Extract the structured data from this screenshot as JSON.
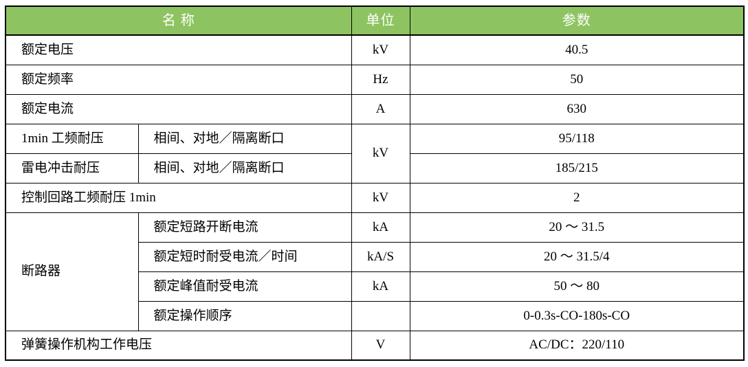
{
  "colors": {
    "header_bg": "#8dc461",
    "header_text": "#ffffff",
    "border": "#000000"
  },
  "table": {
    "header": {
      "name": "名  称",
      "unit": "单位",
      "param": "参数"
    },
    "rows": {
      "rated_voltage": {
        "name": "额定电压",
        "unit": "kV",
        "value": "40.5"
      },
      "rated_frequency": {
        "name": "额定频率",
        "unit": "Hz",
        "value": "50"
      },
      "rated_current": {
        "name": "额定电流",
        "unit": "A",
        "value": "630"
      },
      "power_freq_withstand": {
        "name": "1min 工频耐压",
        "sub": "相间、对地／隔离断口",
        "unit": "kV",
        "value": "95/118"
      },
      "lightning_impulse": {
        "name": "雷电冲击耐压",
        "sub": "相间、对地／隔离断口",
        "value": "185/215"
      },
      "control_circuit": {
        "name": "控制回路工频耐压 1min",
        "unit": "kV",
        "value": "2"
      },
      "breaker_group": {
        "name": "断路器"
      },
      "breaking_current": {
        "sub": "额定短路开断电流",
        "unit": "kA",
        "value": "20 ～ 31.5"
      },
      "short_time_current": {
        "sub": "额定短时耐受电流／时间",
        "unit": "kA/S",
        "value": "20 ～ 31.5/4"
      },
      "peak_current": {
        "sub": "额定峰值耐受电流",
        "unit": "kA",
        "value": "50 ～ 80"
      },
      "operation_sequence": {
        "sub": "额定操作顺序",
        "unit": "",
        "value": "0-0.3s-CO-180s-CO"
      },
      "spring_mechanism": {
        "name": "弹簧操作机构工作电压",
        "unit": "V",
        "value": "AC/DC：220/110"
      }
    }
  }
}
